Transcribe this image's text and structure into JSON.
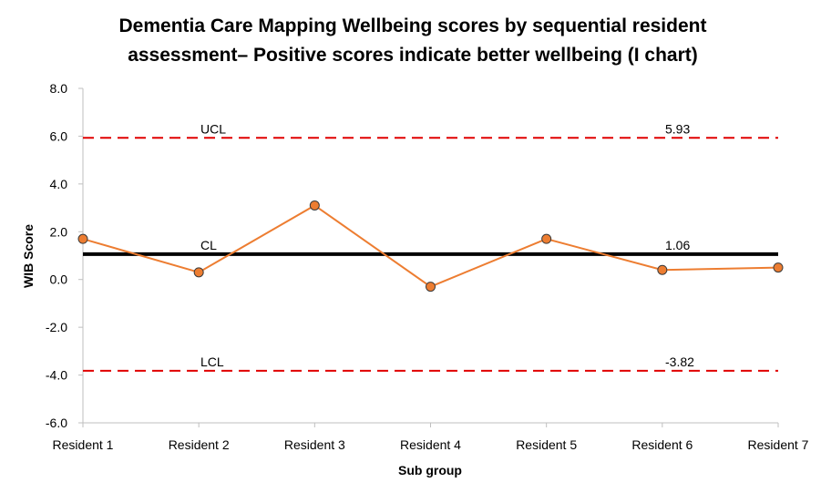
{
  "chart_data": {
    "type": "line",
    "title_lines": [
      "Dementia Care Mapping Wellbeing scores by sequential resident",
      "assessment– Positive scores indicate better wellbeing (I chart)"
    ],
    "xlabel": "Sub group",
    "ylabel": "WIB Score",
    "categories": [
      "Resident 1",
      "Resident 2",
      "Resident 3",
      "Resident 4",
      "Resident 5",
      "Resident 6",
      "Resident 7"
    ],
    "values": [
      1.7,
      0.3,
      3.1,
      -0.3,
      1.7,
      0.4,
      0.5
    ],
    "ylim": [
      -6.0,
      8.0
    ],
    "yticks": [
      "8.0",
      "6.0",
      "4.0",
      "2.0",
      "0.0",
      "-2.0",
      "-4.0",
      "-6.0"
    ],
    "ytick_values": [
      8,
      6,
      4,
      2,
      0,
      -2,
      -4,
      -6
    ],
    "grid": false,
    "series_color": "#ED7D31",
    "reference_lines": [
      {
        "label": "UCL",
        "value": 5.93,
        "value_text": "5.93",
        "color": "#E00000",
        "style": "dashed"
      },
      {
        "label": "CL",
        "value": 1.06,
        "value_text": "1.06",
        "color": "#000000",
        "style": "solid"
      },
      {
        "label": "LCL",
        "value": -3.82,
        "value_text": "-3.82",
        "color": "#E00000",
        "style": "dashed"
      }
    ]
  }
}
